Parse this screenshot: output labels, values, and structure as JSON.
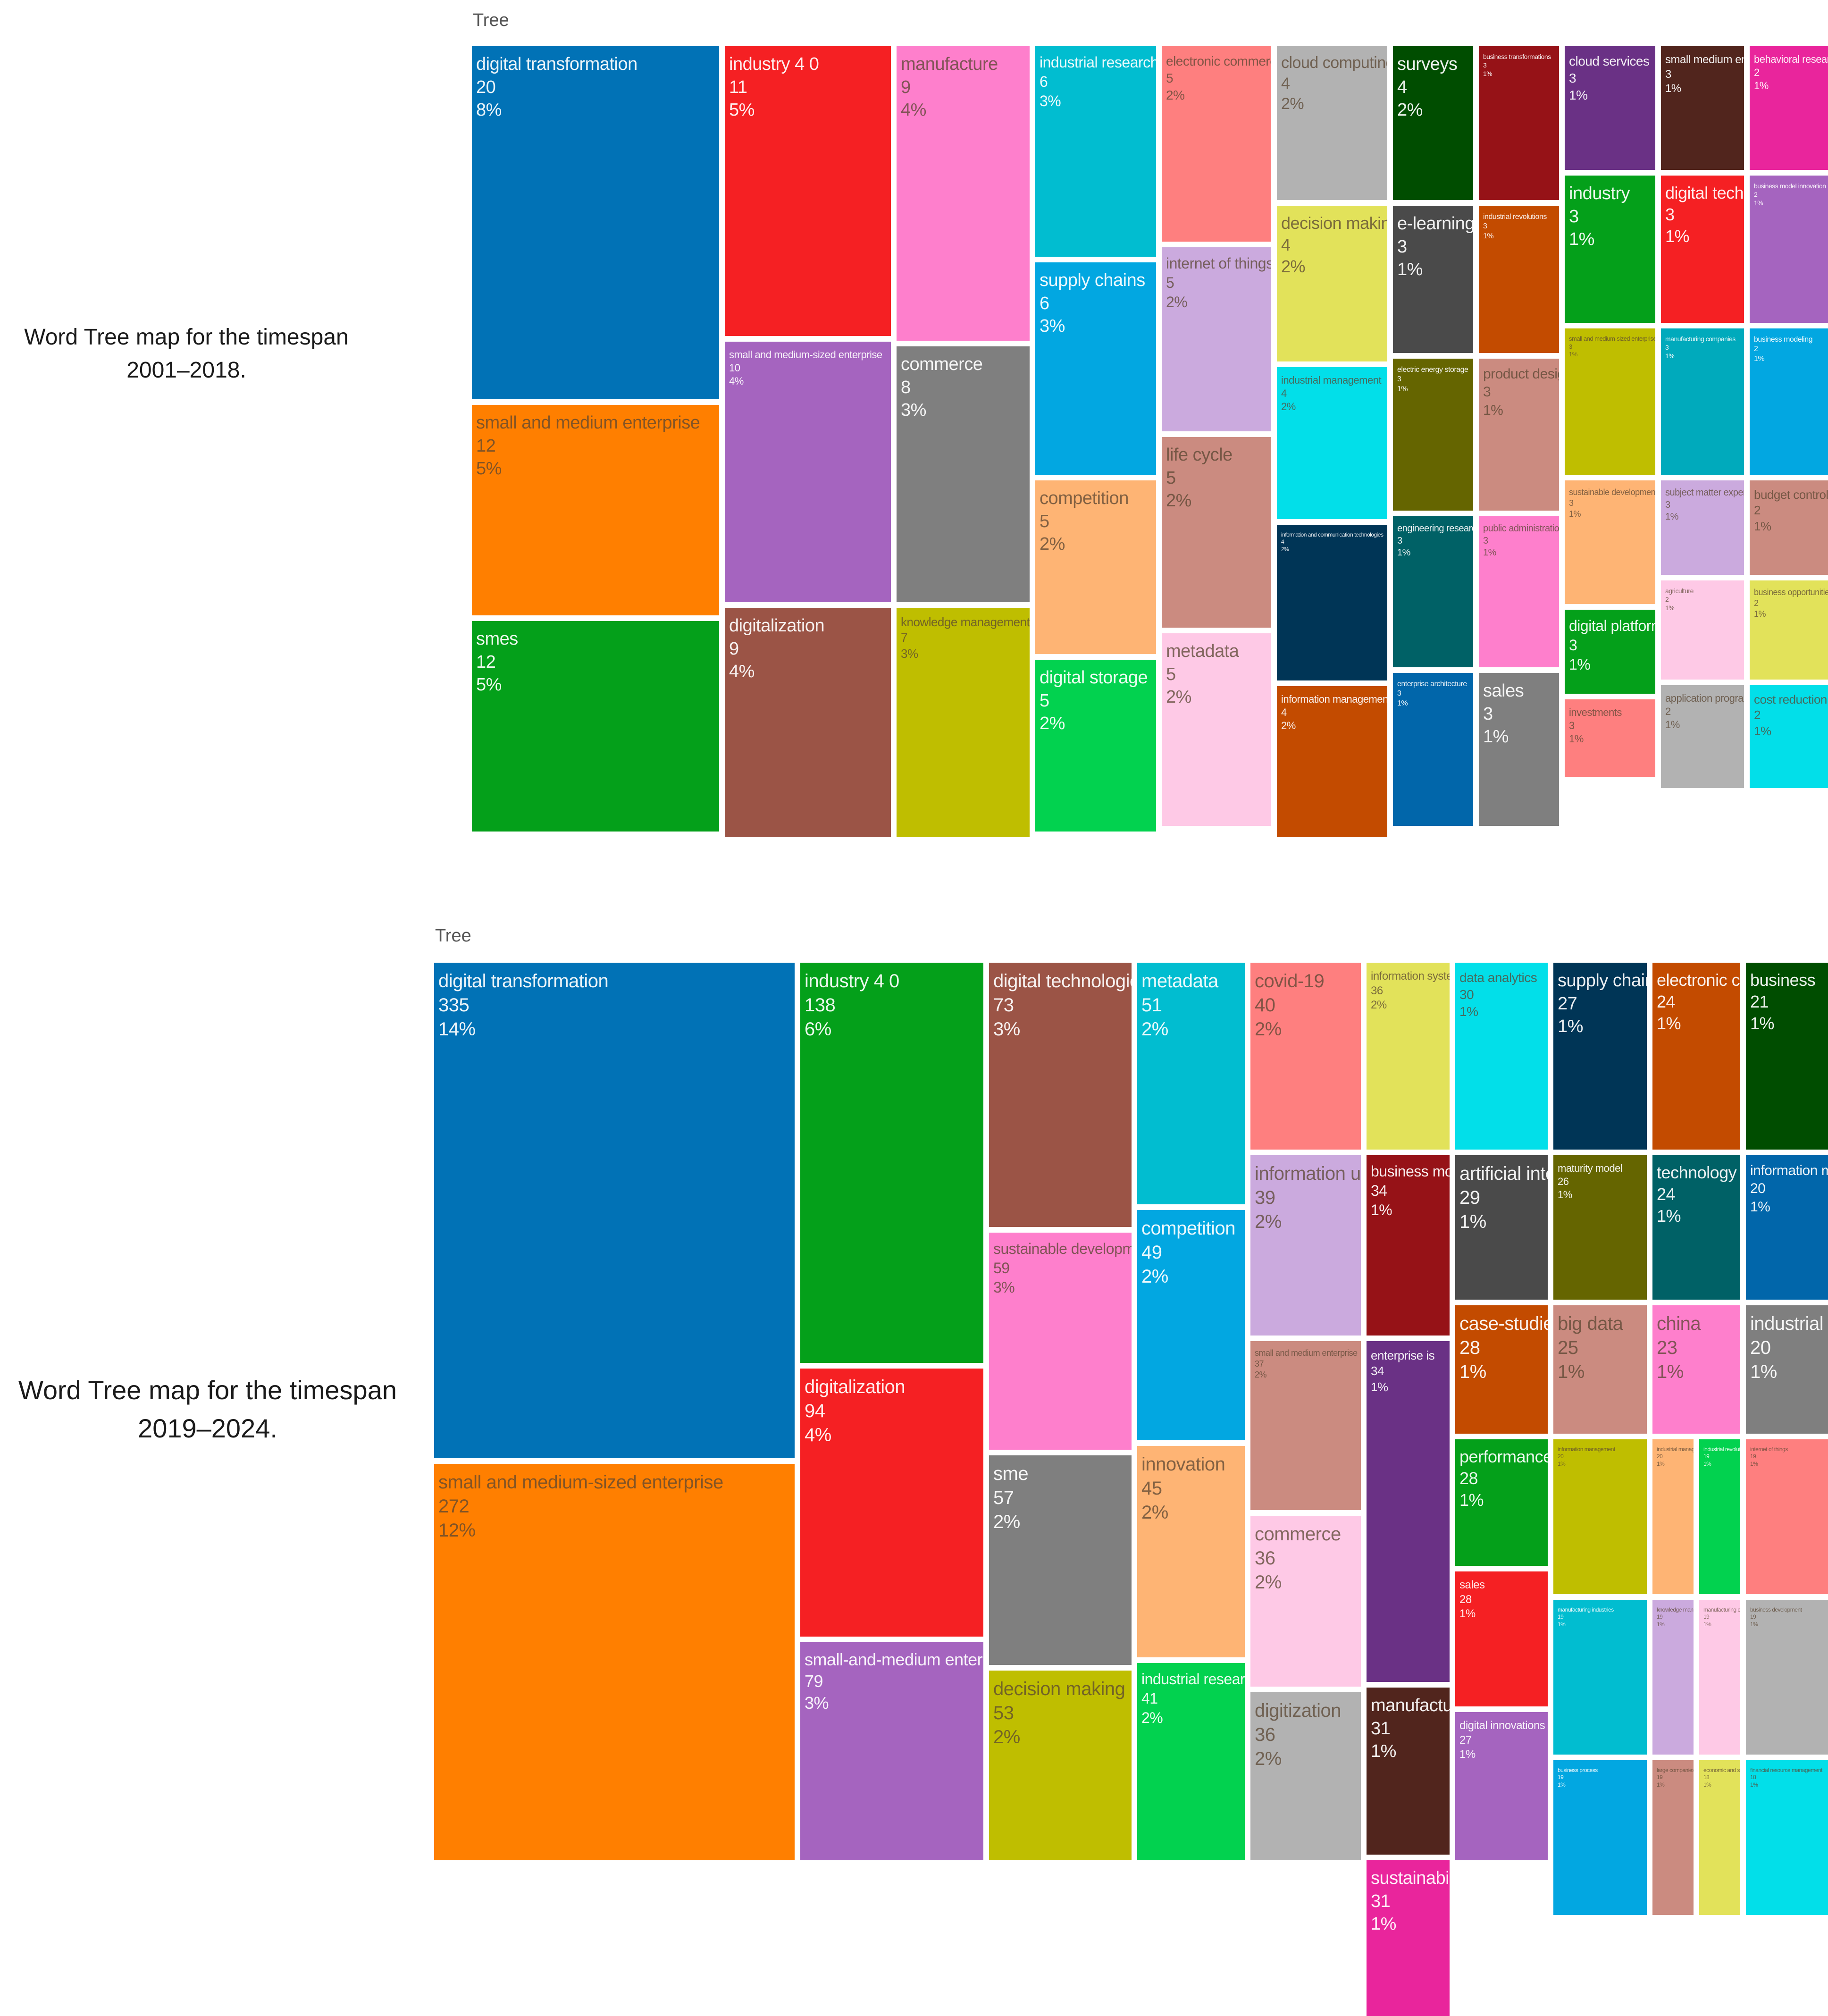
{
  "captions": {
    "top": "Word Tree map for the timespan 2001–2018.",
    "bottom": "Word Tree map for the timespan 2019–2024."
  },
  "colors": {
    "blue": "#0172b6",
    "orange": "#ff7f00",
    "green": "#04a01a",
    "red": "#f52023",
    "purple": "#a564bf",
    "brown": "#9b5446",
    "pink": "#fe7fcc",
    "gray": "#7f7f7f",
    "olive": "#bfbe00",
    "cyan": "#01bdd0",
    "skyblue": "#02a7e1",
    "peach": "#feb474",
    "lime": "#02d24f",
    "salmon": "#fe7f7f",
    "lavender": "#cbaade",
    "rosybrown": "#cb8b80",
    "lightpink": "#fec9e6",
    "silver": "#b2b2b2",
    "khaki": "#e2e25a",
    "aqua": "#02dfe9",
    "navy": "#003556",
    "rust": "#c34b00",
    "darkgreen": "#004d00",
    "charcoal": "#4a4a4a",
    "dkteal": "#006166",
    "medblue": "#0166aa",
    "maroon": "#961217",
    "darkpurple": "#6a3185",
    "chocolate": "#51251d",
    "magenta": "#e9259c",
    "darkolive": "#656500",
    "tealcyan": "#00aabc"
  },
  "chart_data": [
    {
      "type": "treemap",
      "title": "Tree",
      "items": [
        {
          "label": "digital transformation",
          "value": 20,
          "percent": "8%"
        },
        {
          "label": "small and medium enterprise",
          "value": 12,
          "percent": "5%"
        },
        {
          "label": "smes",
          "value": 12,
          "percent": "5%"
        },
        {
          "label": "industry 4 0",
          "value": 11,
          "percent": "5%"
        },
        {
          "label": "small and medium-sized enterprise",
          "value": 10,
          "percent": "4%"
        },
        {
          "label": "digitalization",
          "value": 9,
          "percent": "4%"
        },
        {
          "label": "manufacture",
          "value": 9,
          "percent": "4%"
        },
        {
          "label": "commerce",
          "value": 8,
          "percent": "3%"
        },
        {
          "label": "knowledge management",
          "value": 7,
          "percent": "3%"
        },
        {
          "label": "industrial research",
          "value": 6,
          "percent": "3%"
        },
        {
          "label": "supply chains",
          "value": 6,
          "percent": "3%"
        },
        {
          "label": "competition",
          "value": 5,
          "percent": "2%"
        },
        {
          "label": "digital storage",
          "value": 5,
          "percent": "2%"
        },
        {
          "label": "electronic commerce",
          "value": 5,
          "percent": "2%"
        },
        {
          "label": "internet of things",
          "value": 5,
          "percent": "2%"
        },
        {
          "label": "life cycle",
          "value": 5,
          "percent": "2%"
        },
        {
          "label": "metadata",
          "value": 5,
          "percent": "2%"
        },
        {
          "label": "cloud computing",
          "value": 4,
          "percent": "2%"
        },
        {
          "label": "decision making",
          "value": 4,
          "percent": "2%"
        },
        {
          "label": "industrial management",
          "value": 4,
          "percent": "2%"
        },
        {
          "label": "information and communication technologies",
          "value": 4,
          "percent": "2%"
        },
        {
          "label": "information management",
          "value": 4,
          "percent": "2%"
        },
        {
          "label": "surveys",
          "value": 4,
          "percent": "2%"
        },
        {
          "label": "e-learning",
          "value": 3,
          "percent": "1%"
        },
        {
          "label": "electric energy storage",
          "value": 3,
          "percent": "1%"
        },
        {
          "label": "engineering research",
          "value": 3,
          "percent": "1%"
        },
        {
          "label": "enterprise architecture",
          "value": 3,
          "percent": "1%"
        },
        {
          "label": "business transformations",
          "value": 3,
          "percent": "1%"
        },
        {
          "label": "industrial revolutions",
          "value": 3,
          "percent": "1%"
        },
        {
          "label": "product design",
          "value": 3,
          "percent": "1%"
        },
        {
          "label": "public administration",
          "value": 3,
          "percent": "1%"
        },
        {
          "label": "sales",
          "value": 3,
          "percent": "1%"
        },
        {
          "label": "cloud services",
          "value": 3,
          "percent": "1%"
        },
        {
          "label": "industry",
          "value": 3,
          "percent": "1%"
        },
        {
          "label": "small and medium-sized enterprise",
          "value": 3,
          "percent": "1%"
        },
        {
          "label": "sustainable development",
          "value": 3,
          "percent": "1%"
        },
        {
          "label": "digital platforms",
          "value": 3,
          "percent": "1%"
        },
        {
          "label": "investments",
          "value": 3,
          "percent": "1%"
        },
        {
          "label": "small medium enterprise",
          "value": 3,
          "percent": "1%"
        },
        {
          "label": "digital technologies",
          "value": 3,
          "percent": "1%"
        },
        {
          "label": "manufacturing companies",
          "value": 3,
          "percent": "1%"
        },
        {
          "label": "subject matter experts",
          "value": 3,
          "percent": "1%"
        },
        {
          "label": "agriculture",
          "value": 2,
          "percent": "1%"
        },
        {
          "label": "application programs",
          "value": 2,
          "percent": "1%"
        },
        {
          "label": "behavioral research",
          "value": 2,
          "percent": "1%"
        },
        {
          "label": "business model innovation",
          "value": 2,
          "percent": "1%"
        },
        {
          "label": "business modeling",
          "value": 2,
          "percent": "1%"
        },
        {
          "label": "budget control",
          "value": 2,
          "percent": "1%"
        },
        {
          "label": "business opportunities",
          "value": 2,
          "percent": "1%"
        },
        {
          "label": "cost reduction",
          "value": 2,
          "percent": "1%"
        }
      ]
    },
    {
      "type": "treemap",
      "title": "Tree",
      "items": [
        {
          "label": "digital transformation",
          "value": 335,
          "percent": "14%"
        },
        {
          "label": "small and medium-sized enterprise",
          "value": 272,
          "percent": "12%"
        },
        {
          "label": "industry 4 0",
          "value": 138,
          "percent": "6%"
        },
        {
          "label": "digitalization",
          "value": 94,
          "percent": "4%"
        },
        {
          "label": "small-and-medium enterprise",
          "value": 79,
          "percent": "3%"
        },
        {
          "label": "digital technologies",
          "value": 73,
          "percent": "3%"
        },
        {
          "label": "sustainable development",
          "value": 59,
          "percent": "3%"
        },
        {
          "label": "sme",
          "value": 57,
          "percent": "2%"
        },
        {
          "label": "decision making",
          "value": 53,
          "percent": "2%"
        },
        {
          "label": "metadata",
          "value": 51,
          "percent": "2%"
        },
        {
          "label": "competition",
          "value": 49,
          "percent": "2%"
        },
        {
          "label": "innovation",
          "value": 45,
          "percent": "2%"
        },
        {
          "label": "industrial research",
          "value": 41,
          "percent": "2%"
        },
        {
          "label": "covid-19",
          "value": 40,
          "percent": "2%"
        },
        {
          "label": "information use",
          "value": 39,
          "percent": "2%"
        },
        {
          "label": "small and medium enterprise",
          "value": 37,
          "percent": "2%"
        },
        {
          "label": "commerce",
          "value": 36,
          "percent": "2%"
        },
        {
          "label": "digitization",
          "value": 36,
          "percent": "2%"
        },
        {
          "label": "information systems",
          "value": 36,
          "percent": "2%"
        },
        {
          "label": "business models",
          "value": 34,
          "percent": "1%"
        },
        {
          "label": "enterprise is",
          "value": 34,
          "percent": "1%"
        },
        {
          "label": "manufacture",
          "value": 31,
          "percent": "1%"
        },
        {
          "label": "sustainability",
          "value": 31,
          "percent": "1%"
        },
        {
          "label": "data analytics",
          "value": 30,
          "percent": "1%"
        },
        {
          "label": "artificial intelligence",
          "value": 29,
          "percent": "1%"
        },
        {
          "label": "case-studies",
          "value": 28,
          "percent": "1%"
        },
        {
          "label": "performance",
          "value": 28,
          "percent": "1%"
        },
        {
          "label": "sales",
          "value": 28,
          "percent": "1%"
        },
        {
          "label": "digital innovations",
          "value": 27,
          "percent": "1%"
        },
        {
          "label": "supply chains",
          "value": 27,
          "percent": "1%"
        },
        {
          "label": "maturity model",
          "value": 26,
          "percent": "1%"
        },
        {
          "label": "big data",
          "value": 25,
          "percent": "1%"
        },
        {
          "label": "manufacturing",
          "value": 25,
          "percent": "1%"
        },
        {
          "label": "electronic commerce",
          "value": 24,
          "percent": "1%"
        },
        {
          "label": "technology adoption",
          "value": 24,
          "percent": "1%"
        },
        {
          "label": "china",
          "value": 23,
          "percent": "1%"
        },
        {
          "label": "e-learning",
          "value": 22,
          "percent": "1%"
        },
        {
          "label": "business",
          "value": 21,
          "percent": "1%"
        },
        {
          "label": "information management",
          "value": 20,
          "percent": "1%"
        },
        {
          "label": "industrial management",
          "value": 20,
          "percent": "1%"
        },
        {
          "label": "industrial revolutions",
          "value": 19,
          "percent": "1%"
        },
        {
          "label": "internet of things",
          "value": 19,
          "percent": "1%"
        },
        {
          "label": "manufacturing industries",
          "value": 19,
          "percent": "1%"
        },
        {
          "label": "knowledge management",
          "value": 19,
          "percent": "1%"
        },
        {
          "label": "manufacturing companies",
          "value": 19,
          "percent": "1%"
        },
        {
          "label": "business development",
          "value": 19,
          "percent": "1%"
        },
        {
          "label": "business process",
          "value": 19,
          "percent": "1%"
        },
        {
          "label": "large companies",
          "value": 19,
          "percent": "1%"
        },
        {
          "label": "economic and social effects",
          "value": 18,
          "percent": "1%"
        },
        {
          "label": "financial resource management",
          "value": 18,
          "percent": "1%"
        }
      ]
    }
  ]
}
